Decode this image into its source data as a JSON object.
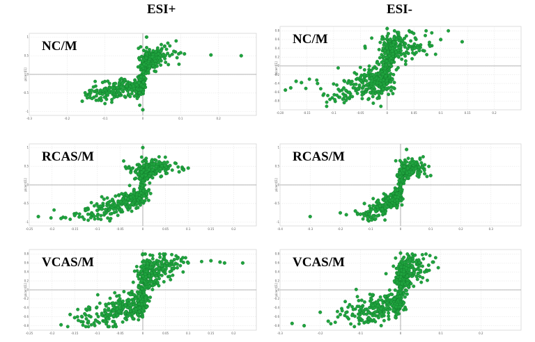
{
  "header": {
    "left": "ESI+",
    "right": "ESI-"
  },
  "ylabel_text": "p(corr)[1]",
  "colors": {
    "point": "#1fa33e",
    "point_edge": "#0d6b25"
  },
  "chart_data": [
    {
      "id": "p1",
      "type": "scatter",
      "title": "NC/M",
      "xlim": [
        -0.3,
        0.3
      ],
      "ylim": [
        -1.1,
        1.1
      ],
      "xticks": [
        -0.3,
        -0.2,
        -0.1,
        0,
        0.1,
        0.2
      ],
      "xtick_labels": [
        "-0.3",
        "-0.2",
        "-0.1",
        "0",
        "0.1",
        "0.2"
      ],
      "yticks": [
        1,
        0.5,
        0,
        -0.5,
        -1
      ],
      "ytick_labels": [
        "1",
        "0.5",
        "0",
        "-0.5",
        "-1"
      ],
      "outliers": [
        [
          0.01,
          1.0
        ],
        [
          0.1,
          0.58
        ],
        [
          0.11,
          0.55
        ],
        [
          0.18,
          0.52
        ],
        [
          0.26,
          0.5
        ],
        [
          -0.16,
          -0.72
        ],
        [
          -0.14,
          -0.55
        ],
        [
          -0.12,
          -0.5
        ],
        [
          -0.11,
          -0.7
        ],
        [
          0.0,
          -0.95
        ]
      ],
      "params": {
        "neg_x_end": -0.13,
        "neg_y_end": -0.55,
        "pos_x_end": 0.07,
        "pos_y_end": 0.6,
        "spread_x": 0.02,
        "spread_y": 0.12,
        "n": 520
      }
    },
    {
      "id": "p2",
      "type": "scatter",
      "title": "NC/M",
      "xlim": [
        -0.2,
        0.25
      ],
      "ylim": [
        -1.0,
        0.9
      ],
      "xticks": [
        -0.2,
        -0.15,
        -0.1,
        -0.05,
        0,
        0.05,
        0.1,
        0.15,
        0.2
      ],
      "xtick_labels": [
        "-0.20",
        "-0.15",
        "-0.1",
        "-0.05",
        "0",
        "0.05",
        "0.1",
        "0.15",
        "0.2"
      ],
      "yticks": [
        0.8,
        0.6,
        0.4,
        0.2,
        0,
        -0.2,
        -0.4,
        -0.6,
        -0.8
      ],
      "ytick_labels": [
        "0.8",
        "0.6",
        "0.4",
        "0.2",
        "0",
        "-0.2",
        "-0.4",
        "-0.6",
        "-0.8"
      ],
      "outliers": [
        [
          -0.18,
          -0.5
        ],
        [
          -0.17,
          -0.35
        ],
        [
          -0.16,
          -0.38
        ],
        [
          -0.13,
          -0.4
        ],
        [
          -0.19,
          -0.55
        ],
        [
          0.1,
          0.6
        ],
        [
          0.14,
          0.55
        ],
        [
          0.08,
          0.45
        ],
        [
          0.06,
          0.35
        ],
        [
          0.0,
          0.85
        ]
      ],
      "params": {
        "neg_x_end": -0.09,
        "neg_y_end": -0.6,
        "pos_x_end": 0.05,
        "pos_y_end": 0.6,
        "spread_x": 0.025,
        "spread_y": 0.18,
        "n": 620
      }
    },
    {
      "id": "p3",
      "type": "scatter",
      "title": "RCAS/M",
      "xlim": [
        -0.25,
        0.25
      ],
      "ylim": [
        -1.1,
        1.1
      ],
      "xticks": [
        -0.25,
        -0.2,
        -0.15,
        -0.1,
        -0.05,
        0,
        0.05,
        0.1,
        0.15,
        0.2
      ],
      "xtick_labels": [
        "-0.25",
        "-0.2",
        "-0.15",
        "-0.1",
        "-0.05",
        "0",
        "0.05",
        "0.1",
        "0.15",
        "0.2"
      ],
      "yticks": [
        1,
        0.5,
        0,
        -0.5,
        -1
      ],
      "ytick_labels": [
        "1",
        "0.5",
        "0",
        "-0.5",
        "-1"
      ],
      "outliers": [
        [
          -0.23,
          -0.85
        ],
        [
          -0.18,
          -0.9
        ],
        [
          -0.17,
          -0.88
        ],
        [
          -0.15,
          -0.82
        ],
        [
          -0.14,
          -0.86
        ],
        [
          0.0,
          1.0
        ],
        [
          0.08,
          0.35
        ],
        [
          0.09,
          0.4
        ],
        [
          0.1,
          0.45
        ],
        [
          -0.06,
          -0.3
        ]
      ],
      "params": {
        "neg_x_end": -0.12,
        "neg_y_end": -0.85,
        "pos_x_end": 0.04,
        "pos_y_end": 0.6,
        "spread_x": 0.025,
        "spread_y": 0.1,
        "n": 560
      }
    },
    {
      "id": "p4",
      "type": "scatter",
      "title": "RCAS/M",
      "xlim": [
        -0.4,
        0.4
      ],
      "ylim": [
        -1.1,
        1.1
      ],
      "xticks": [
        -0.4,
        -0.3,
        -0.2,
        -0.1,
        0,
        0.1,
        0.2,
        0.3
      ],
      "xtick_labels": [
        "-0.4",
        "-0.3",
        "-0.2",
        "-0.1",
        "0",
        "0.1",
        "0.2",
        "0.3"
      ],
      "yticks": [
        1,
        0.5,
        0,
        -0.5,
        -1
      ],
      "ytick_labels": [
        "1",
        "0.5",
        "0",
        "-0.5",
        "-1"
      ],
      "outliers": [
        [
          -0.3,
          -0.85
        ],
        [
          -0.2,
          -0.75
        ],
        [
          -0.18,
          -0.8
        ],
        [
          -0.15,
          -0.7
        ],
        [
          0.08,
          0.3
        ],
        [
          0.1,
          0.25
        ],
        [
          0.02,
          0.95
        ],
        [
          -0.12,
          -0.5
        ]
      ],
      "params": {
        "neg_x_end": -0.12,
        "neg_y_end": -0.85,
        "pos_x_end": 0.06,
        "pos_y_end": 0.55,
        "spread_x": 0.02,
        "spread_y": 0.12,
        "n": 480
      }
    },
    {
      "id": "p5",
      "type": "scatter",
      "title": "VCAS/M",
      "xlim": [
        -0.25,
        0.25
      ],
      "ylim": [
        -0.9,
        0.9
      ],
      "xticks": [
        -0.25,
        -0.2,
        -0.15,
        -0.1,
        -0.05,
        0,
        0.05,
        0.1,
        0.15,
        0.2
      ],
      "xtick_labels": [
        "-0.25",
        "-0.2",
        "-0.15",
        "-0.1",
        "-0.05",
        "0",
        "0.05",
        "0.1",
        "0.15",
        "0.2"
      ],
      "yticks": [
        0.8,
        0.6,
        0.4,
        0.2,
        0,
        -0.2,
        -0.4,
        -0.6,
        -0.8
      ],
      "ytick_labels": [
        "0.8",
        "0.6",
        "0.4",
        "0.2",
        "0",
        "-0.2",
        "-0.4",
        "-0.6",
        "-0.8"
      ],
      "outliers": [
        [
          -0.18,
          -0.78
        ],
        [
          -0.16,
          -0.55
        ],
        [
          -0.15,
          -0.62
        ],
        [
          -0.12,
          -0.7
        ],
        [
          0.1,
          0.6
        ],
        [
          0.15,
          0.65
        ],
        [
          0.17,
          0.62
        ],
        [
          0.18,
          0.6
        ],
        [
          0.22,
          0.6
        ],
        [
          0.0,
          0.8
        ]
      ],
      "params": {
        "neg_x_end": -0.12,
        "neg_y_end": -0.65,
        "pos_x_end": 0.06,
        "pos_y_end": 0.65,
        "spread_x": 0.025,
        "spread_y": 0.14,
        "n": 620
      }
    },
    {
      "id": "p6",
      "type": "scatter",
      "title": "VCAS/M",
      "xlim": [
        -0.3,
        0.3
      ],
      "ylim": [
        -0.9,
        0.9
      ],
      "xticks": [
        -0.3,
        -0.2,
        -0.1,
        0,
        0.1,
        0.2
      ],
      "xtick_labels": [
        "-0.3",
        "-0.2",
        "-0.1",
        "0",
        "0.1",
        "0.2"
      ],
      "yticks": [
        0.8,
        0.6,
        0.4,
        0.2,
        0,
        -0.2,
        -0.4,
        -0.6,
        -0.8
      ],
      "ytick_labels": [
        "0.8",
        "0.6",
        "0.4",
        "0.2",
        "0",
        "-0.2",
        "-0.4",
        "-0.6",
        "-0.8"
      ],
      "outliers": [
        [
          -0.27,
          -0.75
        ],
        [
          -0.24,
          -0.8
        ],
        [
          -0.2,
          -0.5
        ],
        [
          -0.18,
          -0.7
        ],
        [
          -0.15,
          -0.55
        ],
        [
          0.07,
          0.55
        ],
        [
          0.08,
          0.62
        ],
        [
          0.06,
          0.4
        ],
        [
          0.04,
          0.3
        ],
        [
          0.0,
          0.82
        ]
      ],
      "params": {
        "neg_x_end": -0.12,
        "neg_y_end": -0.6,
        "pos_x_end": 0.04,
        "pos_y_end": 0.6,
        "spread_x": 0.025,
        "spread_y": 0.15,
        "n": 560
      }
    }
  ]
}
